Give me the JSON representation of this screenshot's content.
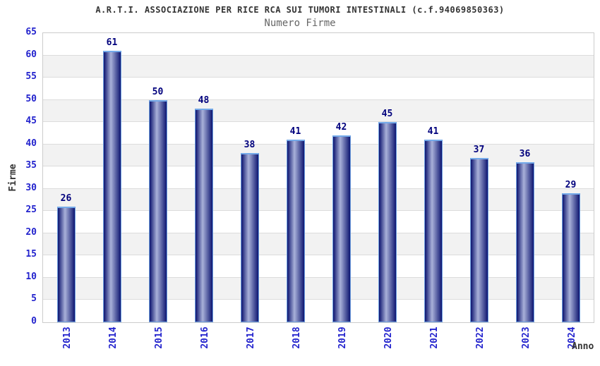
{
  "header": {
    "title": "A.R.T.I. ASSOCIAZIONE PER RICE RCA SUI TUMORI INTESTINALI (c.f.94069850363)",
    "subtitle": "Numero Firme"
  },
  "chart_data": {
    "type": "bar",
    "title": "A.R.T.I. ASSOCIAZIONE PER RICE RCA SUI TUMORI INTESTINALI (c.f.94069850363)",
    "subtitle": "Numero Firme",
    "categories": [
      "2013",
      "2014",
      "2015",
      "2016",
      "2017",
      "2018",
      "2019",
      "2020",
      "2021",
      "2022",
      "2023",
      "2024"
    ],
    "values": [
      26,
      61,
      50,
      48,
      38,
      41,
      42,
      45,
      41,
      37,
      36,
      29
    ],
    "xlabel": "Anno",
    "ylabel": "Firme",
    "ylim": [
      0,
      65
    ],
    "ytick_step": 5,
    "yticks": [
      0,
      5,
      10,
      15,
      20,
      25,
      30,
      35,
      40,
      45,
      50,
      55,
      60,
      65
    ],
    "grid": "horizontal gridlines every 5 units with alternating band fill",
    "legend": "none",
    "colors": {
      "tick_label": "#2323cd",
      "value_label": "#00007d",
      "axis_title": "#333333",
      "title_text": "#333333",
      "subtitle_text": "#666666",
      "bar_dark": "#131b74",
      "bar_light": "#a9b1d9",
      "bar_outline": "#6e9fe0",
      "bar_top_highlight": "#74aaea",
      "band_white": "#ffffff",
      "band_alt": "#f2f2f2",
      "grid_line": "#dcdcdc",
      "plot_border": "#cccccc"
    }
  }
}
